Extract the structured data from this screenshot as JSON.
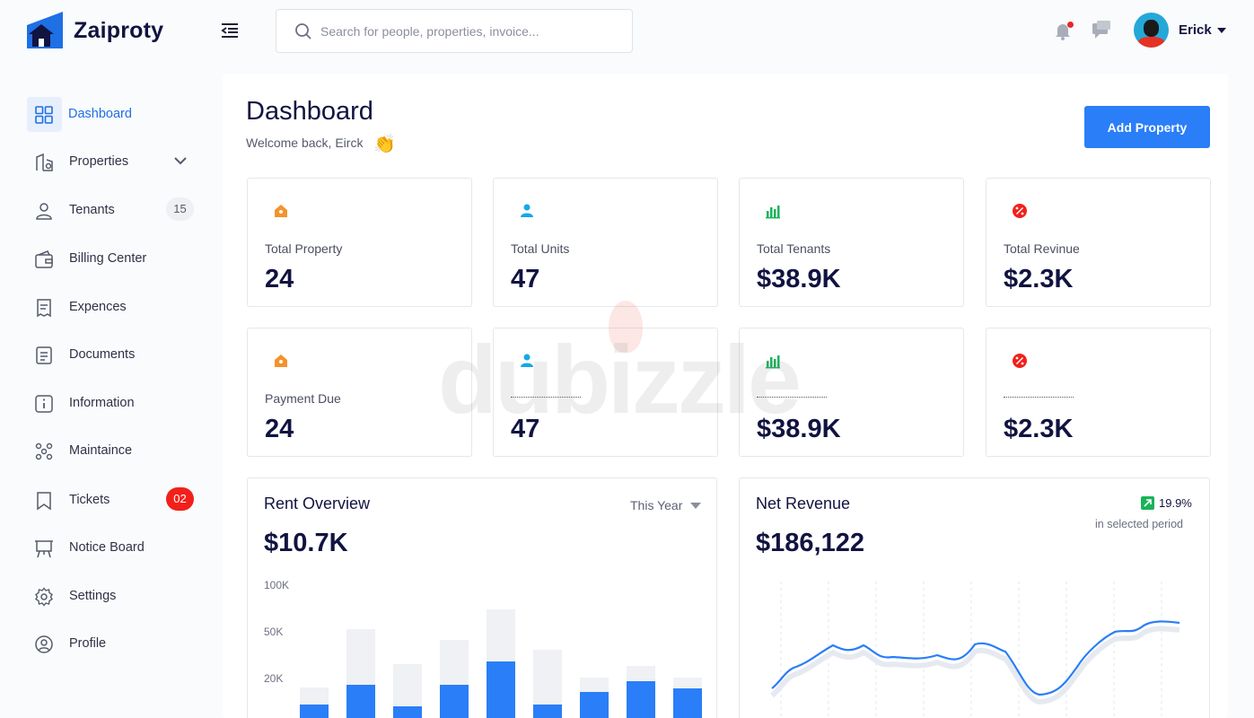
{
  "app": {
    "brand": "Zaiproty"
  },
  "header": {
    "search_placeholder": "Search for people, properties, invoice...",
    "user_name": "Erick"
  },
  "sidebar": {
    "items": [
      {
        "label": "Dashboard",
        "icon": "grid-icon",
        "active": true
      },
      {
        "label": "Properties",
        "icon": "building-icon",
        "has_submenu": true
      },
      {
        "label": "Tenants",
        "icon": "user-icon",
        "badge": "15"
      },
      {
        "label": "Billing Center",
        "icon": "wallet-icon"
      },
      {
        "label": "Expences",
        "icon": "receipt-icon"
      },
      {
        "label": "Documents",
        "icon": "document-icon"
      },
      {
        "label": "Information",
        "icon": "info-icon"
      },
      {
        "label": "Maintaince",
        "icon": "people-group-icon"
      },
      {
        "label": "Tickets",
        "icon": "ticket-icon",
        "badge": "02"
      },
      {
        "label": "Notice Board",
        "icon": "notice-board-icon"
      },
      {
        "label": "Settings",
        "icon": "settings-icon"
      },
      {
        "label": "Profile",
        "icon": "profile-icon"
      }
    ]
  },
  "page": {
    "title": "Dashboard",
    "welcome": "Welcome back, Eirck",
    "wave_emoji": "👏",
    "add_button": "Add Property"
  },
  "stats_row1": [
    {
      "label": "Total Property",
      "value": "24",
      "icon": "home-icon",
      "color": "#f5922b"
    },
    {
      "label": "Total Units",
      "value": "47",
      "icon": "person-icon",
      "color": "#19a7e8"
    },
    {
      "label": "Total Tenants",
      "value": "$38.9K",
      "icon": "bar-chart-icon",
      "color": "#19b35a"
    },
    {
      "label": "Total Revinue",
      "value": "$2.3K",
      "icon": "percent-icon",
      "color": "#f2201a"
    }
  ],
  "stats_row2": [
    {
      "label": "Payment Due",
      "value": "24",
      "icon": "home-icon",
      "color": "#f5922b"
    },
    {
      "label": "",
      "value": "47",
      "icon": "person-icon",
      "color": "#19a7e8"
    },
    {
      "label": "",
      "value": "$38.9K",
      "icon": "bar-chart-icon",
      "color": "#19b35a"
    },
    {
      "label": "",
      "value": "$2.3K",
      "icon": "percent-icon",
      "color": "#f2201a"
    }
  ],
  "rent_overview": {
    "title": "Rent Overview",
    "period": "This Year",
    "value": "$10.7K",
    "y_ticks": [
      "100K",
      "50K",
      "20K"
    ]
  },
  "net_revenue": {
    "title": "Net Revenue",
    "value": "$186,122",
    "growth": "19.9%",
    "growth_sub": "in selected period"
  },
  "watermark": "dubizzle",
  "colors": {
    "accent": "#2a7ef7",
    "bar_fill": "#2a7ef7",
    "bar_track": "#eff1f4"
  }
}
